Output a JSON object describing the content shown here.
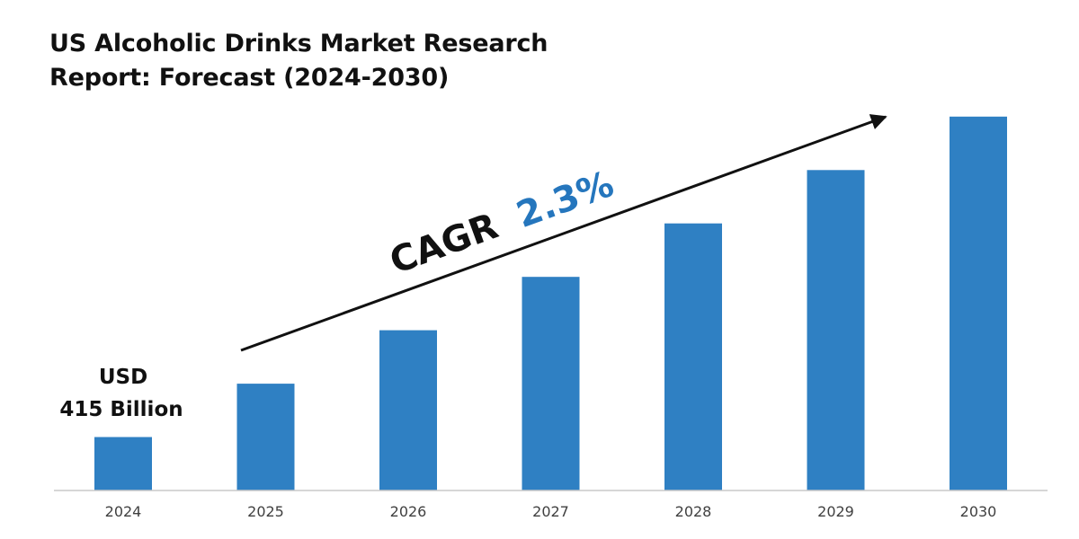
{
  "title_line1": "US Alcoholic Drinks Market Research",
  "title_line2": "Report: Forecast (2024-2030)",
  "annotation": {
    "start_currency": "USD",
    "start_value": "415 Billion",
    "cagr_prefix": "CAGR",
    "cagr_value": "2.3%"
  },
  "colors": {
    "bar": "#2f80c3",
    "cagr_value": "#2576bd",
    "axis": "#c8c8c8",
    "arrow": "#111111"
  },
  "chart_data": {
    "type": "bar",
    "categories": [
      "2024",
      "2025",
      "2026",
      "2027",
      "2028",
      "2029",
      "2030"
    ],
    "values": [
      1,
      2,
      3,
      4,
      5,
      6,
      7
    ],
    "ylim": [
      0,
      7.3
    ],
    "grid": false,
    "legend": "none"
  }
}
